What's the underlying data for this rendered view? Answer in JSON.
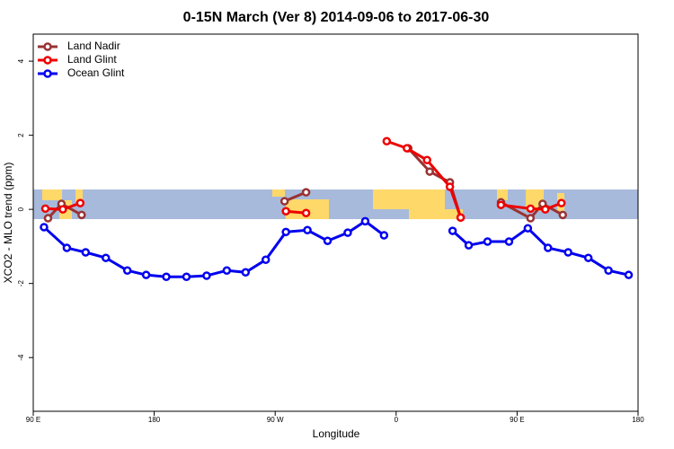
{
  "chart_data": {
    "type": "line",
    "title": "0-15N March (Ver 8)   2014-09-06 to 2017-06-30",
    "xlabel": "Longitude",
    "ylabel": "XCO2 - MLO trend (ppm)",
    "xlim": [
      90,
      540
    ],
    "ylim": [
      -5.45,
      4.73
    ],
    "xticks": [
      {
        "value": 90,
        "label": "90 E"
      },
      180,
      {
        "value": 270,
        "label": "90 W"
      },
      {
        "value": 360,
        "label": "0"
      },
      {
        "value": 450,
        "label": "90 E"
      },
      {
        "value": 540,
        "label": "180"
      }
    ],
    "yticks": [
      -4,
      -2,
      0,
      2,
      4
    ],
    "legend": "top-left",
    "series": [
      {
        "name": "Land Nadir",
        "color": "#993333",
        "x": [
          101,
          111,
          126,
          null,
          277,
          293,
          null,
          369,
          385,
          400,
          408,
          null,
          438,
          460,
          469,
          484
        ],
        "values": [
          -0.24,
          0.15,
          -0.15,
          null,
          0.22,
          0.46,
          null,
          1.65,
          1.02,
          0.73,
          -0.22,
          null,
          0.19,
          -0.24,
          0.15,
          -0.15
        ]
      },
      {
        "name": "Land Glint",
        "color": "#ee0000",
        "x": [
          99,
          112,
          125,
          null,
          278,
          293,
          null,
          353,
          368,
          383,
          400,
          408,
          null,
          438,
          460,
          471,
          483
        ],
        "values": [
          0.02,
          0,
          0.17,
          null,
          -0.05,
          -0.1,
          null,
          1.84,
          1.65,
          1.33,
          0.61,
          -0.22,
          null,
          0.12,
          0.02,
          0,
          0.17
        ]
      },
      {
        "name": "Ocean Glint",
        "color": "#0000ee",
        "x": [
          98,
          115,
          129,
          144,
          160,
          174,
          189,
          204,
          219,
          234,
          248,
          263,
          278,
          294,
          309,
          324,
          337,
          351,
          null,
          402,
          414,
          428,
          444,
          458,
          473,
          488,
          503,
          518,
          533
        ],
        "values": [
          -0.48,
          -1.04,
          -1.16,
          -1.31,
          -1.65,
          -1.77,
          -1.82,
          -1.82,
          -1.79,
          -1.65,
          -1.7,
          -1.36,
          -0.61,
          -0.56,
          -0.85,
          -0.63,
          -0.32,
          -0.7,
          null,
          -0.58,
          -0.97,
          -0.87,
          -0.87,
          -0.51,
          -1.04,
          -1.16,
          -1.31,
          -1.65,
          -1.77
        ]
      }
    ]
  }
}
